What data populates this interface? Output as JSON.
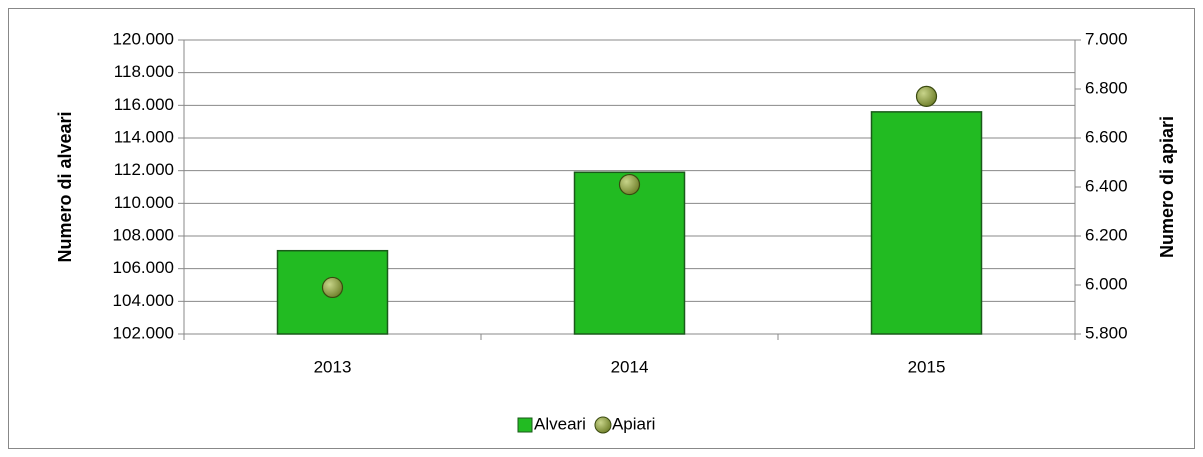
{
  "chart_data": {
    "type": "bar",
    "categories": [
      "2013",
      "2014",
      "2015"
    ],
    "series": [
      {
        "name": "Alveari",
        "type": "bar",
        "color": "#22bb22",
        "values": [
          107100,
          111900,
          115600
        ]
      },
      {
        "name": "Apiari",
        "type": "scatter",
        "axis": "y2",
        "color": "#8a9a3a",
        "values": [
          5990,
          6410,
          6770
        ]
      }
    ],
    "y_label": "Numero di alveari",
    "y2_label": "Numero di apiari",
    "ylim": [
      102000,
      120000
    ],
    "yticks": [
      {
        "value": 102000,
        "label": "102.000"
      },
      {
        "value": 104000,
        "label": "104.000"
      },
      {
        "value": 106000,
        "label": "106.000"
      },
      {
        "value": 108000,
        "label": "108.000"
      },
      {
        "value": 110000,
        "label": "110.000"
      },
      {
        "value": 112000,
        "label": "112.000"
      },
      {
        "value": 114000,
        "label": "114.000"
      },
      {
        "value": 116000,
        "label": "116.000"
      },
      {
        "value": 118000,
        "label": "118.000"
      },
      {
        "value": 120000,
        "label": "120.000"
      }
    ],
    "y2lim": [
      5800,
      7000
    ],
    "y2ticks": [
      {
        "value": 5800,
        "label": "5.800"
      },
      {
        "value": 6000,
        "label": "6.000"
      },
      {
        "value": 6200,
        "label": "6.200"
      },
      {
        "value": 6400,
        "label": "6.400"
      },
      {
        "value": 6600,
        "label": "6.600"
      },
      {
        "value": 6800,
        "label": "6.800"
      },
      {
        "value": 7000,
        "label": "7.000"
      }
    ],
    "grid": true,
    "legend": "bottom"
  }
}
